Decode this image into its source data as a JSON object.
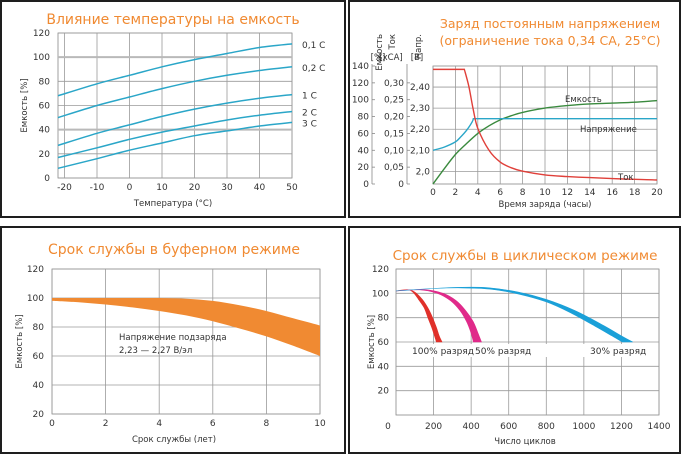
{
  "chart_data": [
    {
      "id": "temp",
      "type": "line",
      "title": "Влияние температуры на емкость",
      "xlabel": "Температура (°C)",
      "ylabel": "Емкость [%]",
      "xlim": [
        -22,
        50
      ],
      "ylim": [
        0,
        120
      ],
      "xticks": [
        -20,
        -10,
        0,
        10,
        20,
        30,
        40,
        50
      ],
      "yticks": [
        0,
        20,
        40,
        60,
        80,
        100,
        120
      ],
      "grid": true,
      "x": [
        -22,
        -10,
        0,
        10,
        20,
        30,
        40,
        50
      ],
      "series": [
        {
          "name": "0,1 C",
          "values": [
            68,
            78,
            85,
            92,
            98,
            103,
            108,
            111
          ]
        },
        {
          "name": "0,2 C",
          "values": [
            50,
            60,
            67,
            74,
            80,
            85,
            89,
            92
          ]
        },
        {
          "name": "1 C",
          "values": [
            27,
            37,
            44,
            51,
            57,
            62,
            66,
            69
          ]
        },
        {
          "name": "2 C",
          "values": [
            17,
            25,
            32,
            38,
            43,
            48,
            52,
            55
          ]
        },
        {
          "name": "3 C",
          "values": [
            8,
            16,
            23,
            29,
            35,
            39,
            43,
            46
          ]
        }
      ],
      "line_color": "#2aa6c8"
    },
    {
      "id": "charge",
      "type": "line",
      "title": [
        "Заряд постоянным напряжением",
        "(ограничение тока 0,34 СА, 25°С)"
      ],
      "xlabel": "Время заряда (часы)",
      "xlim": [
        0,
        20
      ],
      "xticks": [
        0,
        2,
        4,
        6,
        8,
        10,
        12,
        14,
        16,
        18,
        20
      ],
      "axes": [
        {
          "label": "Емкость",
          "unit": "[%]",
          "ticks": [
            "0",
            "20",
            "40",
            "60",
            "80",
            "100",
            "120",
            "140"
          ],
          "range": [
            0,
            140
          ]
        },
        {
          "label": "Ток",
          "unit": "[xCA]",
          "ticks": [
            "0",
            "0,05",
            "0,10",
            "0,15",
            "0,20",
            "0,25",
            "0,30"
          ],
          "range": [
            0,
            0.35
          ]
        },
        {
          "label": "Напр.",
          "unit": "[В]",
          "ticks": [
            "2,0",
            "2,10",
            "2,20",
            "2,30",
            "2,40"
          ],
          "range": [
            1.94,
            2.5
          ]
        }
      ],
      "grid": true,
      "series": [
        {
          "name": "Емкость",
          "axis": 0,
          "color": "#3a8a3e",
          "x": [
            0,
            1,
            2,
            3,
            4,
            5,
            6,
            7,
            8,
            10,
            12,
            14,
            16,
            18,
            20
          ],
          "values": [
            0,
            18,
            35,
            48,
            60,
            69,
            76,
            81,
            85,
            90,
            93,
            95,
            96,
            97,
            99
          ]
        },
        {
          "name": "Напряжение",
          "axis": 2,
          "color": "#2aa6c8",
          "x": [
            0,
            1,
            2,
            2.5,
            3,
            3.5,
            3.6,
            20
          ],
          "values": [
            2.1,
            2.115,
            2.14,
            2.165,
            2.195,
            2.235,
            2.25,
            2.25
          ]
        },
        {
          "name": "Ток",
          "axis": 1,
          "color": "#e0403a",
          "x": [
            0,
            2.8,
            3.2,
            3.6,
            4,
            5,
            6,
            7,
            8,
            10,
            12,
            14,
            16,
            18,
            20
          ],
          "values": [
            0.34,
            0.34,
            0.29,
            0.22,
            0.165,
            0.1,
            0.065,
            0.048,
            0.038,
            0.027,
            0.022,
            0.019,
            0.016,
            0.014,
            0.012
          ]
        }
      ]
    },
    {
      "id": "float",
      "type": "area",
      "title": "Срок службы в буферном режиме",
      "xlabel": "Срок службы (лет)",
      "ylabel": "Емкость [%]",
      "xlim": [
        0,
        10
      ],
      "ylim": [
        20,
        120
      ],
      "xticks": [
        0,
        2,
        4,
        6,
        8,
        10
      ],
      "yticks": [
        20,
        40,
        60,
        80,
        100,
        120
      ],
      "grid": true,
      "annotation": [
        "Напряжение подзаряда",
        "2,23 — 2,27 В/эл"
      ],
      "color": "#f08a32",
      "x": [
        0,
        1,
        2,
        3,
        4,
        5,
        6,
        7,
        8,
        9,
        10
      ],
      "upper": [
        100,
        100,
        100,
        100,
        100,
        99.5,
        98,
        95,
        91,
        86,
        81
      ],
      "lower": [
        98,
        97,
        95.5,
        93.5,
        91,
        88,
        84,
        79,
        73.5,
        67,
        60
      ]
    },
    {
      "id": "cycle",
      "type": "area",
      "title": "Срок службы в циклическом режиме",
      "xlabel": "Число циклов",
      "ylabel": "Емкость [%]",
      "xlim": [
        0,
        1400
      ],
      "ylim": [
        0,
        120
      ],
      "xticks": [
        0,
        200,
        400,
        600,
        800,
        1000,
        1200,
        1400
      ],
      "yticks": [
        20,
        40,
        60,
        80,
        100,
        120
      ],
      "grid": true,
      "series": [
        {
          "name": "100% разряд",
          "color": "#e0302a",
          "x_outer": [
            0,
            60,
            100,
            140,
            170,
            195,
            215,
            230,
            245
          ],
          "y_outer": [
            102,
            103,
            101,
            95,
            88,
            80,
            72,
            65,
            60
          ],
          "x_inner": [
            0,
            60,
            90,
            120,
            150,
            170,
            190,
            205,
            215
          ],
          "y_inner": [
            102,
            103,
            101,
            95,
            88,
            80,
            72,
            65,
            60
          ]
        },
        {
          "name": "50% разряд",
          "color": "#e02a8a",
          "x_outer": [
            0,
            150,
            250,
            320,
            370,
            410,
            435,
            455
          ],
          "y_outer": [
            102,
            103,
            100,
            94,
            86,
            77,
            68,
            60
          ],
          "x_inner": [
            0,
            120,
            220,
            290,
            340,
            375,
            398,
            412
          ],
          "y_inner": [
            102,
            103,
            100,
            94,
            86,
            77,
            68,
            60
          ]
        },
        {
          "name": "30% разряд",
          "color": "#1aa0d8",
          "x_outer": [
            0,
            200,
            350,
            500,
            650,
            800,
            950,
            1100,
            1200,
            1260
          ],
          "y_outer": [
            102,
            104,
            105,
            104.5,
            101,
            95,
            86,
            74,
            65,
            60
          ],
          "x_inner": [
            0,
            200,
            350,
            500,
            650,
            800,
            930,
            1060,
            1150,
            1205
          ],
          "y_inner": [
            102,
            104,
            104.5,
            103.5,
            99.5,
            93,
            84,
            73,
            65,
            60
          ]
        }
      ]
    }
  ]
}
